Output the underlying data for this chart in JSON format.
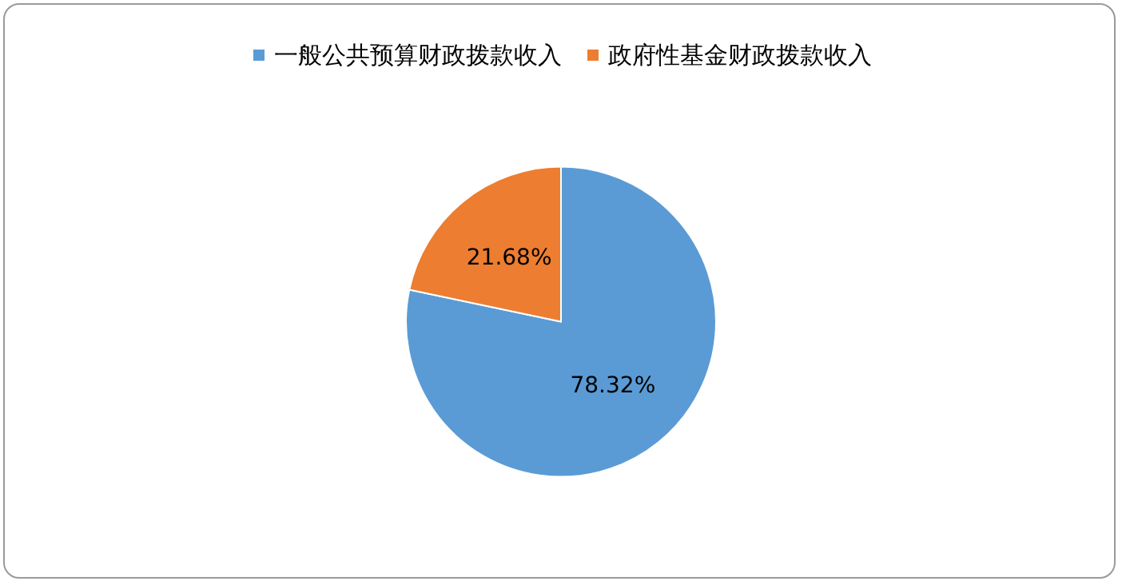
{
  "chart_data": {
    "type": "pie",
    "categories": [
      "一般公共预算财政拨款收入",
      "政府性基金财政拨款收入"
    ],
    "values": [
      78.32,
      21.68
    ],
    "colors": [
      "#5b9bd5",
      "#ed7d31"
    ],
    "value_labels": [
      "78.32%",
      "21.68%"
    ],
    "legend": "top"
  }
}
